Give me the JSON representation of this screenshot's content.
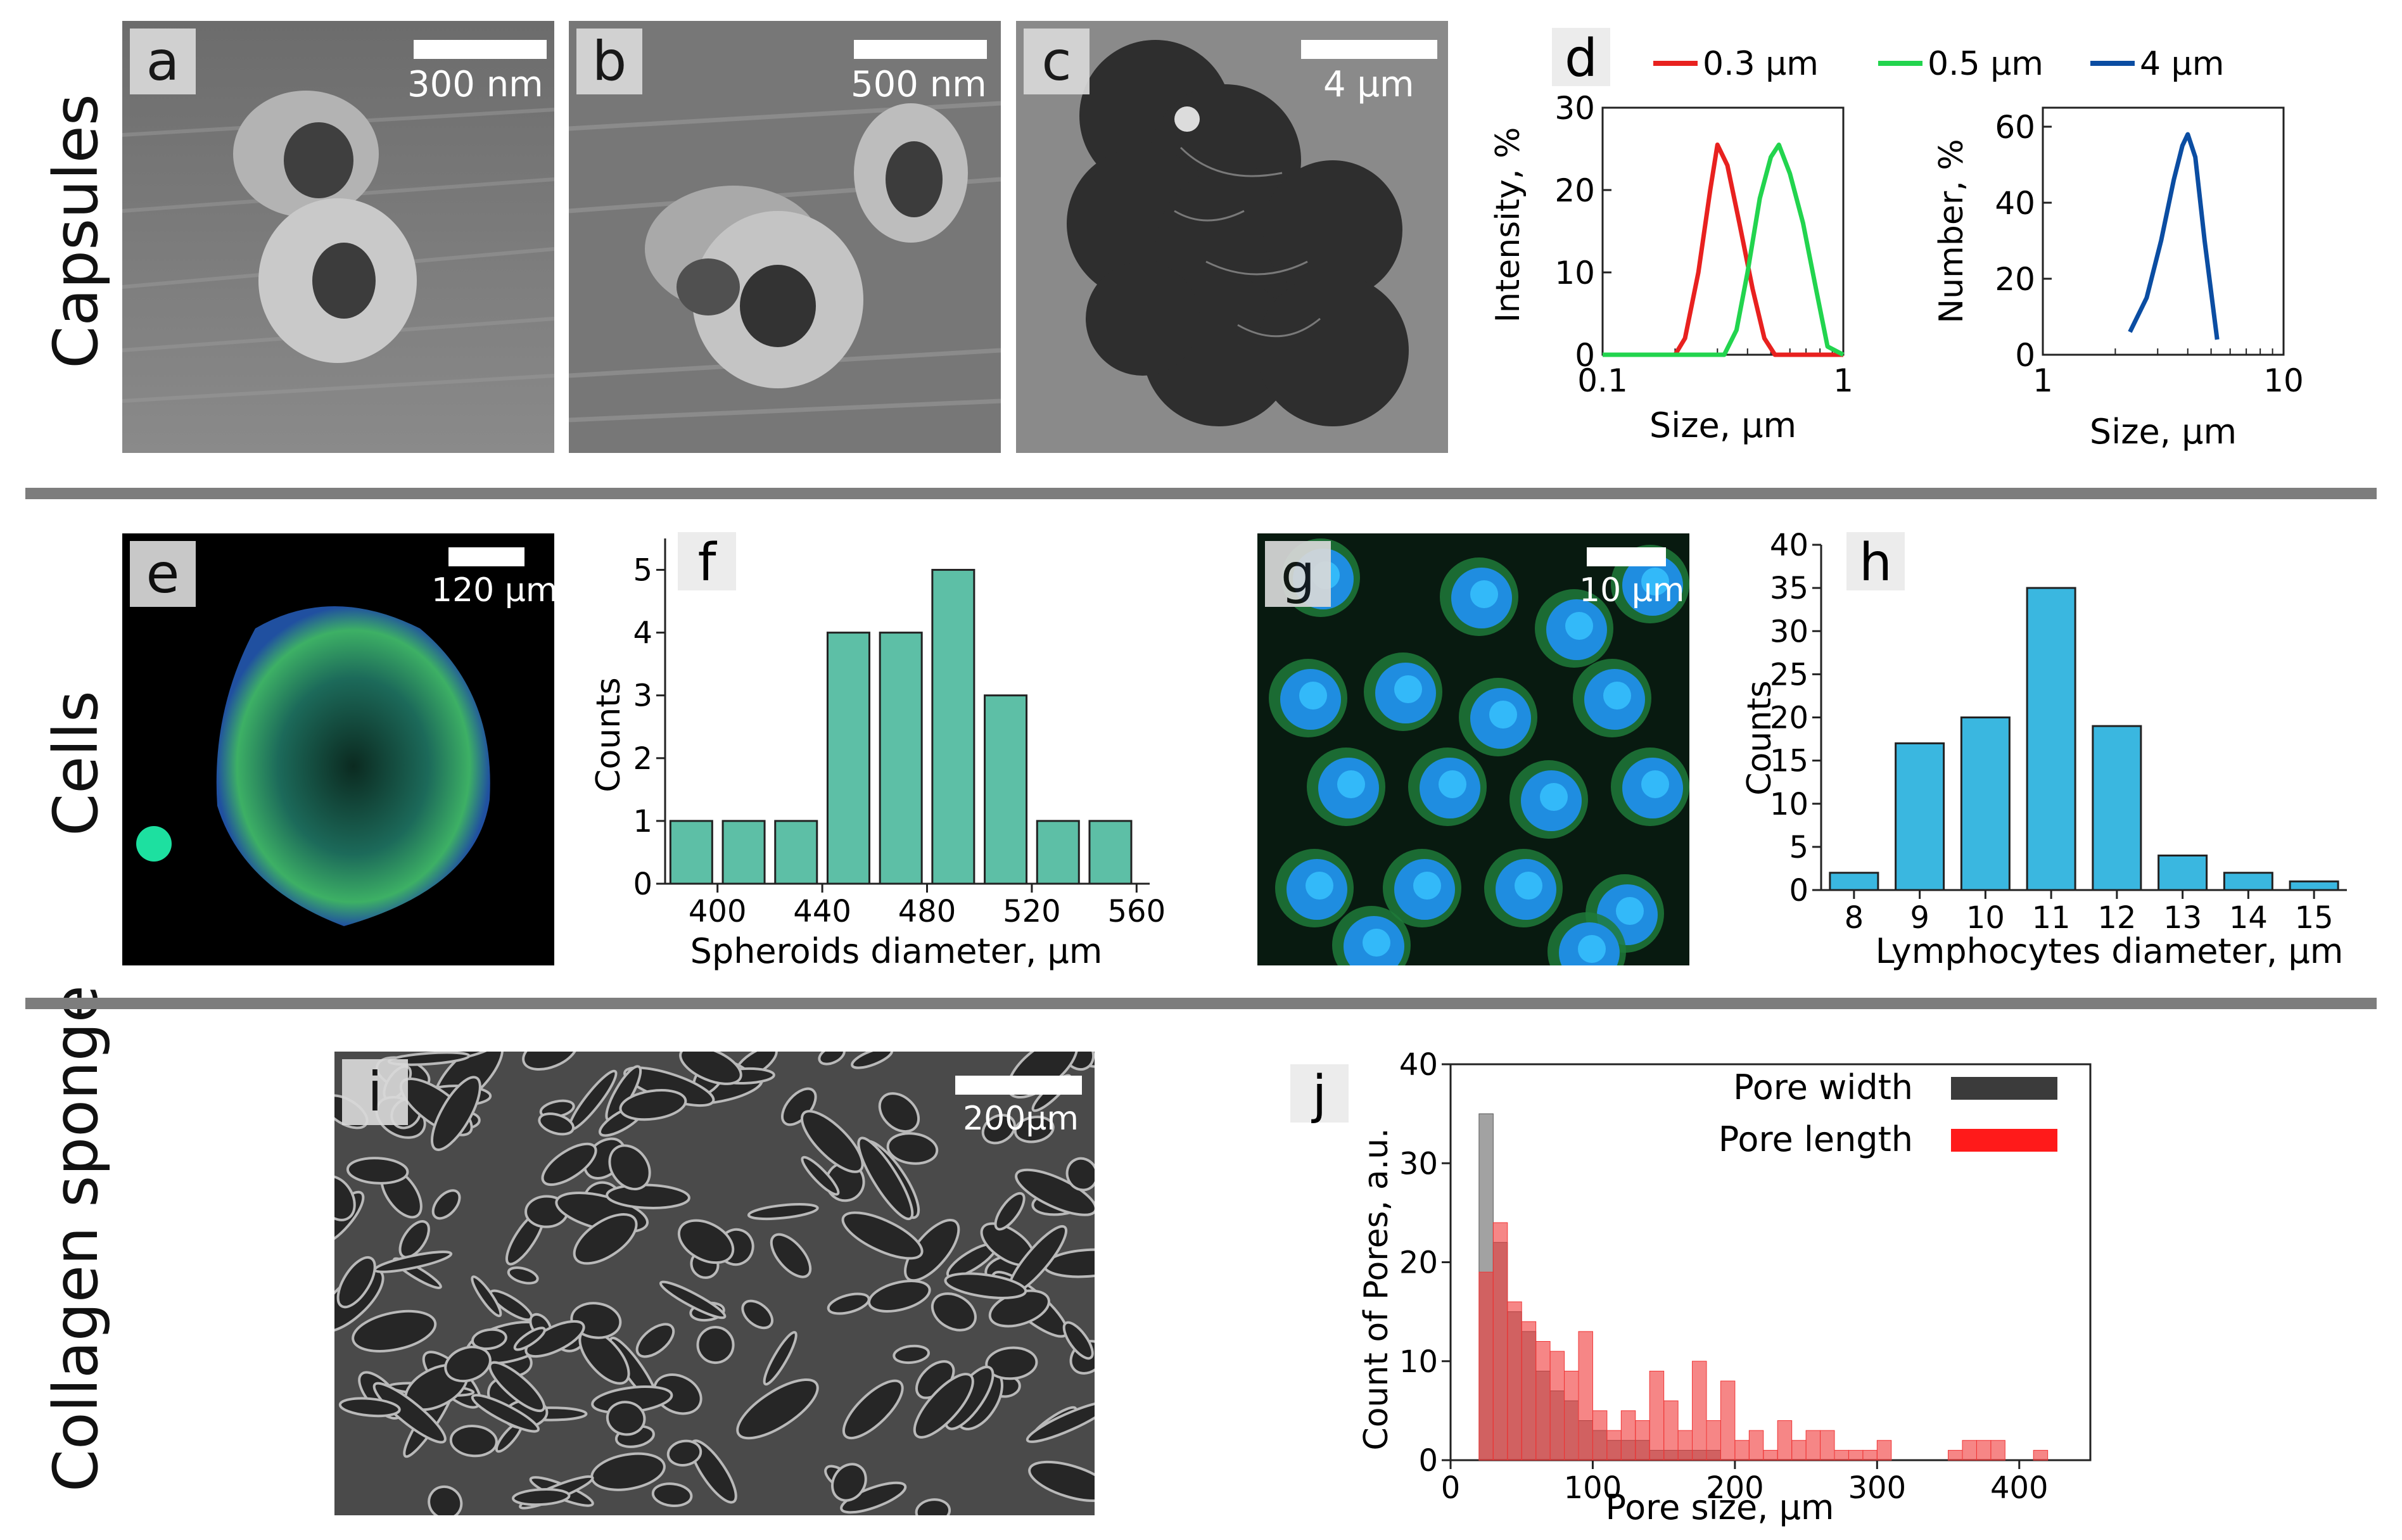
{
  "rows": {
    "capsules": "Capsules",
    "cells": "Cells",
    "collagen": "Collagen sponge"
  },
  "panels": {
    "a": {
      "letter": "a",
      "scale": "300 nm"
    },
    "b": {
      "letter": "b",
      "scale": "500 nm"
    },
    "c": {
      "letter": "c",
      "scale": "4 μm"
    },
    "d": {
      "letter": "d"
    },
    "e": {
      "letter": "e",
      "scale": "120 μm"
    },
    "f": {
      "letter": "f"
    },
    "g": {
      "letter": "g",
      "scale": "10 μm"
    },
    "h": {
      "letter": "h"
    },
    "i": {
      "letter": "i",
      "scale": "200μm"
    },
    "j": {
      "letter": "j"
    }
  },
  "colors": {
    "red": "#e8211f",
    "green": "#22d44e",
    "blue": "#0b4da2",
    "teal": "#5dbfa6",
    "cyan": "#3ab7e0",
    "grey": "#6f6f6f",
    "sep": "#7d7d7d"
  },
  "chart_data": [
    {
      "id": "d-left",
      "type": "line",
      "xscale": "log",
      "xlabel": "Size, μm",
      "ylabel": "Intensity, %",
      "xlim": [
        0.1,
        1
      ],
      "ylim": [
        0,
        30
      ],
      "xticks": [
        "0.1",
        "1"
      ],
      "yticks": [
        "0",
        "10",
        "20",
        "30"
      ],
      "legend": [
        "0.3 μm",
        "0.5 μm",
        "4 μm"
      ],
      "series": [
        {
          "name": "0.3 μm",
          "color": "#e8211f",
          "x": [
            0.1,
            0.2,
            0.22,
            0.25,
            0.28,
            0.3,
            0.33,
            0.37,
            0.42,
            0.47,
            0.52,
            1.0
          ],
          "y": [
            0,
            0,
            2,
            10,
            20,
            25.5,
            23,
            16,
            8,
            2,
            0,
            0
          ]
        },
        {
          "name": "0.5 μm",
          "color": "#22d44e",
          "x": [
            0.1,
            0.32,
            0.36,
            0.4,
            0.45,
            0.5,
            0.54,
            0.6,
            0.68,
            0.77,
            0.86,
            1.0
          ],
          "y": [
            0,
            0,
            3,
            10,
            19,
            24,
            25.5,
            22,
            16,
            8,
            1,
            0
          ]
        }
      ]
    },
    {
      "id": "d-right",
      "type": "line",
      "xscale": "log",
      "xlabel": "Size, μm",
      "ylabel": "Number, %",
      "xlim": [
        1,
        10
      ],
      "ylim": [
        0,
        65
      ],
      "xticks": [
        "1",
        "10"
      ],
      "yticks": [
        "0",
        "20",
        "40",
        "60"
      ],
      "series": [
        {
          "name": "4 μm",
          "color": "#0b4da2",
          "x": [
            2.3,
            2.7,
            3.1,
            3.5,
            3.8,
            4.0,
            4.3,
            4.7,
            5.3
          ],
          "y": [
            6,
            15,
            30,
            46,
            55,
            58,
            52,
            30,
            4
          ]
        }
      ]
    },
    {
      "id": "f",
      "type": "bar",
      "xlabel": "Spheroids diameter, μm",
      "ylabel": "Counts",
      "xlim": [
        380,
        565
      ],
      "ylim": [
        0,
        5.5
      ],
      "xticks": [
        "400",
        "440",
        "480",
        "520",
        "560"
      ],
      "yticks": [
        "0",
        "1",
        "2",
        "3",
        "4",
        "5"
      ],
      "x": [
        390,
        410,
        430,
        450,
        470,
        490,
        510,
        530,
        550
      ],
      "values": [
        1,
        1,
        1,
        4,
        4,
        5,
        3,
        1,
        1
      ]
    },
    {
      "id": "h",
      "type": "bar",
      "xlabel": "Lymphocytes diameter, μm",
      "ylabel": "Counts",
      "xlim": [
        7.5,
        15.5
      ],
      "ylim": [
        0,
        40
      ],
      "categories": [
        "8",
        "9",
        "10",
        "11",
        "12",
        "13",
        "14",
        "15"
      ],
      "yticks": [
        "0",
        "5",
        "10",
        "15",
        "20",
        "25",
        "30",
        "35",
        "40"
      ],
      "values": [
        2,
        17,
        20,
        35,
        19,
        4,
        2,
        1
      ]
    },
    {
      "id": "j",
      "type": "bar",
      "xlabel": "Pore size, μm",
      "ylabel": "Count of Pores, a.u.",
      "xlim": [
        0,
        450
      ],
      "ylim": [
        0,
        40
      ],
      "xticks": [
        "0",
        "100",
        "200",
        "300",
        "400"
      ],
      "yticks": [
        "0",
        "10",
        "20",
        "30",
        "40"
      ],
      "legend": [
        "Pore width",
        "Pore length"
      ],
      "bin_width": 10,
      "bin_start": [
        20,
        30,
        40,
        50,
        60,
        70,
        80,
        90,
        100,
        110,
        120,
        130,
        140,
        150,
        160,
        170,
        180,
        190,
        200,
        210,
        220,
        230,
        240,
        250,
        260,
        270,
        280,
        290,
        300,
        310,
        320,
        330,
        340,
        350,
        360,
        370,
        380,
        390,
        400,
        410
      ],
      "series": [
        {
          "name": "Pore width",
          "color": "#555555",
          "values": [
            35,
            22,
            15,
            13,
            9,
            7,
            6,
            4,
            3,
            2,
            2,
            2,
            1,
            1,
            1,
            1,
            1,
            0,
            0,
            0,
            0,
            0,
            0,
            0,
            0,
            0,
            0,
            0,
            0,
            0,
            0,
            0,
            0,
            0,
            0,
            0,
            0,
            0,
            0,
            0
          ]
        },
        {
          "name": "Pore length",
          "color": "#f03535",
          "values": [
            19,
            24,
            16,
            14,
            12,
            11,
            9,
            13,
            5,
            3,
            5,
            4,
            9,
            6,
            3,
            10,
            4,
            8,
            2,
            3,
            1,
            4,
            2,
            3,
            3,
            1,
            1,
            1,
            2,
            0,
            0,
            0,
            0,
            1,
            2,
            2,
            2,
            0,
            0,
            1
          ]
        }
      ]
    }
  ]
}
